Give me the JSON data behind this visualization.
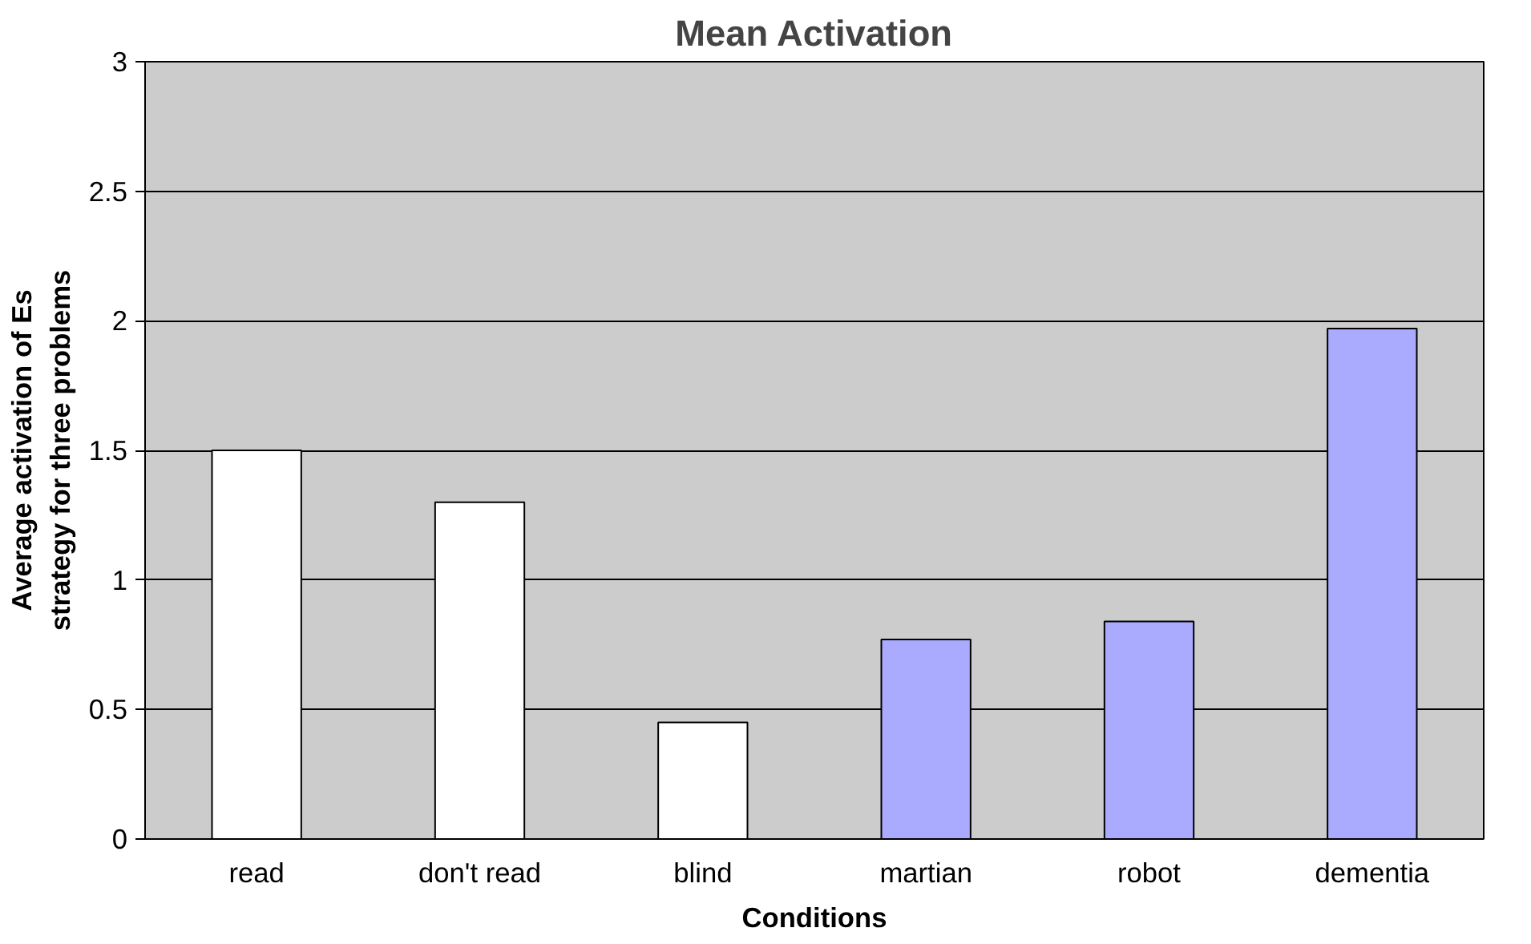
{
  "chart_data": {
    "type": "bar",
    "title": "Mean Activation",
    "xlabel": "Conditions",
    "ylabel": "Average activation of Es\nstrategy for three problems",
    "categories": [
      "read",
      "don't read",
      "blind",
      "martian",
      "robot",
      "dementia"
    ],
    "values": [
      1.5,
      1.3,
      0.45,
      0.77,
      0.84,
      1.97
    ],
    "colors": [
      "#ffffff",
      "#ffffff",
      "#ffffff",
      "#aaaaff",
      "#aaaaff",
      "#aaaaff"
    ],
    "ylim": [
      0,
      3
    ],
    "yticks": [
      0,
      0.5,
      1,
      1.5,
      2,
      2.5,
      3
    ],
    "grid": "y"
  }
}
